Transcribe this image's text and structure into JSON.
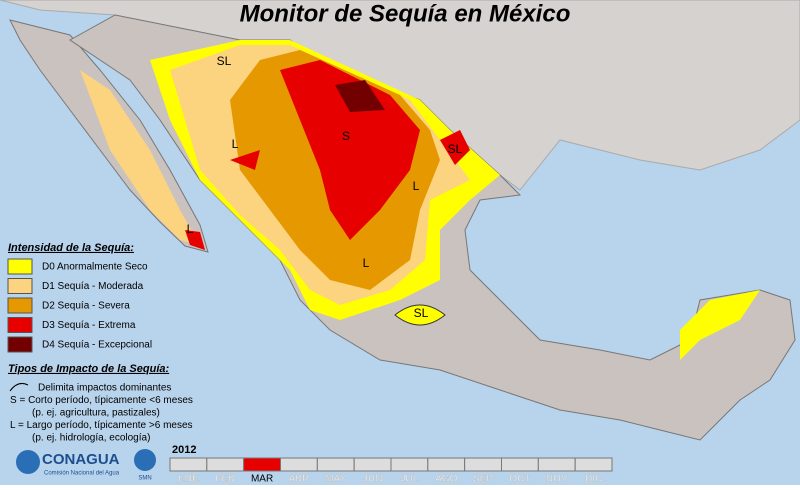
{
  "header": {
    "title": "Monitor de Sequía en México"
  },
  "map_labels": [
    "SL",
    "S",
    "L",
    "SL",
    "L",
    "L",
    "L",
    "SL"
  ],
  "intensity_legend": {
    "title": "Intensidad de la Sequía:",
    "items": [
      {
        "label": "D0 Anormalmente Seco",
        "color": "#ffff00"
      },
      {
        "label": "D1 Sequía - Moderada",
        "color": "#fcd37f"
      },
      {
        "label": "D2 Sequía - Severa",
        "color": "#e69800"
      },
      {
        "label": "D3 Sequía - Extrema",
        "color": "#e60000"
      },
      {
        "label": "D4 Sequía - Excepcional",
        "color": "#730000"
      }
    ]
  },
  "impact_legend": {
    "title": "Tipos de Impacto de la Sequía:",
    "lines": [
      "Delimita impactos dominantes",
      "S = Corto período, típicamente <6 meses",
      "(p. ej. agricultura, pastizales)",
      "L = Largo período, típicamente >6 meses",
      "(p. ej. hidrología, ecología)"
    ]
  },
  "logo": {
    "name": "CONAGUA",
    "subtitle": "Comisión Nacional del Agua",
    "smn": "SMN"
  },
  "timeline": {
    "year": "2012",
    "months": [
      "ENE",
      "FEB",
      "MAR",
      "ABR",
      "MAY",
      "JUN",
      "JUL",
      "AGO",
      "SEP",
      "OCT",
      "NOV",
      "DIC"
    ],
    "selected_index": 2,
    "selected_color": "#e60000"
  }
}
